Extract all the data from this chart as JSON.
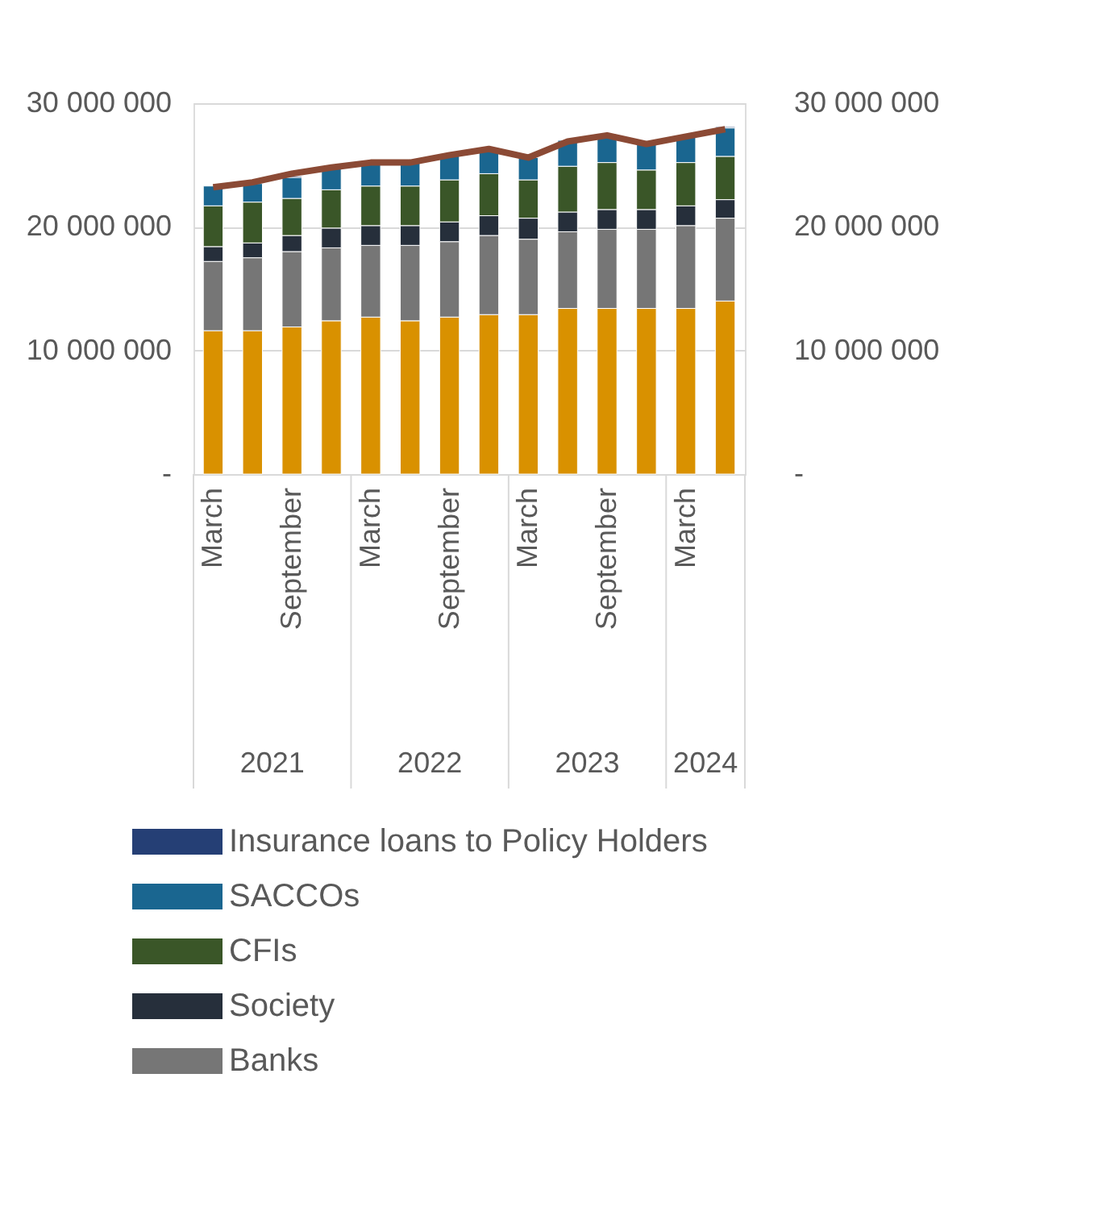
{
  "chart_data": {
    "type": "bar",
    "stacked": true,
    "categories": [
      "March",
      null,
      "September",
      null,
      "March",
      null,
      "September",
      null,
      "March",
      null,
      "September",
      null,
      "March",
      null
    ],
    "series": [
      {
        "color": "#d99100",
        "values": [
          11600000,
          11600000,
          11900000,
          12400000,
          12700000,
          12400000,
          12700000,
          12900000,
          12900000,
          13400000,
          13400000,
          13400000,
          13400000,
          14000000
        ]
      },
      {
        "name": "Banks",
        "color": "#767676",
        "values": [
          5600000,
          5900000,
          6100000,
          5900000,
          5800000,
          6100000,
          6100000,
          6400000,
          6100000,
          6200000,
          6400000,
          6400000,
          6700000,
          6700000
        ]
      },
      {
        "name": "Society",
        "color": "#262f3b",
        "values": [
          1200000,
          1200000,
          1300000,
          1600000,
          1600000,
          1600000,
          1600000,
          1600000,
          1700000,
          1600000,
          1600000,
          1600000,
          1600000,
          1500000
        ]
      },
      {
        "name": "CFIs",
        "color": "#3a5628",
        "values": [
          3300000,
          3300000,
          3000000,
          3100000,
          3200000,
          3200000,
          3400000,
          3400000,
          3100000,
          3700000,
          3800000,
          3200000,
          3500000,
          3500000
        ]
      },
      {
        "name": "SACCOs",
        "color": "#1a6690",
        "values": [
          1600000,
          1500000,
          1700000,
          1800000,
          1900000,
          1900000,
          2000000,
          2000000,
          1800000,
          2100000,
          2200000,
          2100000,
          2100000,
          2300000
        ]
      },
      {
        "name": "Insurance loans to Policy Holders",
        "color": "#253f75",
        "values": [
          null,
          null,
          100000,
          100000,
          100000,
          100000,
          null,
          100000,
          100000,
          null,
          null,
          100000,
          null,
          100000
        ]
      },
      {
        "type": "line",
        "color": "#8b4a35",
        "values": [
          23200000,
          23600000,
          24300000,
          24800000,
          25200000,
          25200000,
          25800000,
          26300000,
          25600000,
          26900000,
          27400000,
          26700000,
          27300000,
          27900000
        ]
      }
    ],
    "annotations": [
      "2021",
      "2022",
      "2023",
      "2024"
    ],
    "ylim": [
      0,
      30000000
    ],
    "yticks": [
      {
        "value": 0,
        "label": "-"
      },
      {
        "value": 10000000,
        "label": "10 000 000"
      },
      {
        "value": 20000000,
        "label": "20 000 000"
      },
      {
        "value": 30000000,
        "label": "30 000 000"
      }
    ],
    "y2lim": [
      0,
      30000000
    ],
    "y2ticks": [
      {
        "value": 0,
        "label": "-"
      },
      {
        "value": 10000000,
        "label": "10 000 000"
      },
      {
        "value": 20000000,
        "label": "20 000 000"
      },
      {
        "value": 30000000,
        "label": "30 000 000"
      }
    ],
    "grid": "y",
    "legend": "bottom"
  }
}
